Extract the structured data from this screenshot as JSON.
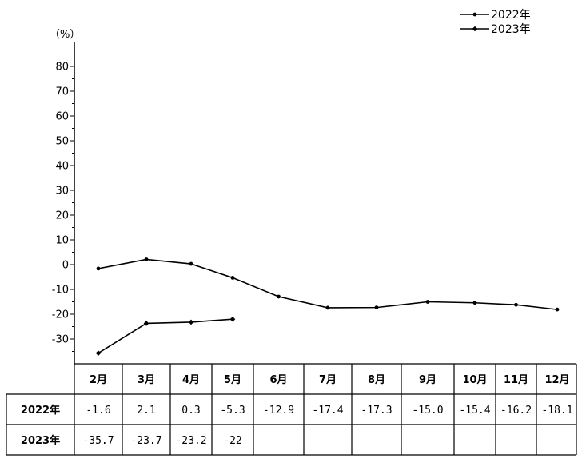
{
  "chart_data": {
    "type": "line",
    "unit_label": "（%）",
    "categories": [
      "2月",
      "3月",
      "4月",
      "5月",
      "6月",
      "7月",
      "8月",
      "9月",
      "10月",
      "11月",
      "12月"
    ],
    "ylim": [
      -40,
      90
    ],
    "yticks": [
      80,
      70,
      60,
      50,
      40,
      30,
      20,
      10,
      0,
      -10,
      -20,
      -30
    ],
    "grid": false,
    "legend_position": "top-right",
    "series": [
      {
        "name": "2022年",
        "marker": "dot",
        "values": [
          -1.6,
          2.1,
          0.3,
          -5.3,
          -12.9,
          -17.4,
          -17.3,
          -15.0,
          -15.4,
          -16.2,
          -18.1
        ],
        "table_values": [
          "-1.6",
          "2.1",
          "0.3",
          "-5.3",
          "-12.9",
          "-17.4",
          "-17.3",
          "-15.0",
          "-15.4",
          "-16.2",
          "-18.1"
        ]
      },
      {
        "name": "2023年",
        "marker": "diamond",
        "values": [
          -35.7,
          -23.7,
          -23.2,
          -22,
          null,
          null,
          null,
          null,
          null,
          null,
          null
        ],
        "table_values": [
          "-35.7",
          "-23.7",
          "-23.2",
          "-22",
          "",
          "",
          "",
          "",
          "",
          "",
          ""
        ]
      }
    ]
  }
}
